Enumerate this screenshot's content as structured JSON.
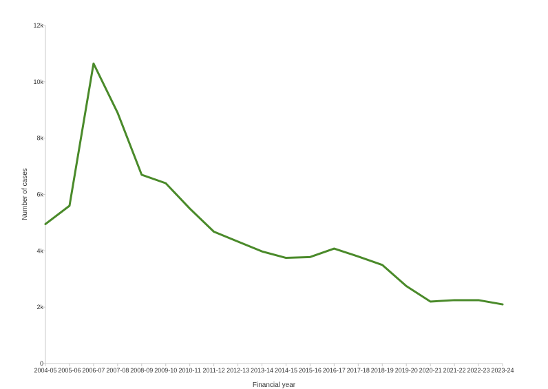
{
  "chart_data": {
    "type": "line",
    "title": "",
    "xlabel": "Financial year",
    "ylabel": "Number of cases",
    "categories": [
      "2004-05",
      "2005-06",
      "2006-07",
      "2007-08",
      "2008-09",
      "2009-10",
      "2010-11",
      "2011-12",
      "2012-13",
      "2013-14",
      "2014-15",
      "2015-16",
      "2016-17",
      "2017-18",
      "2018-19",
      "2019-20",
      "2020-21",
      "2021-22",
      "2022-23",
      "2023-24"
    ],
    "series": [
      {
        "values": [
          4950,
          5600,
          10650,
          8900,
          6700,
          6400,
          5500,
          4680,
          4330,
          3980,
          3750,
          3780,
          4080,
          3800,
          3500,
          2750,
          2200,
          2250,
          2250,
          2100
        ]
      }
    ],
    "ylim": [
      0,
      12000
    ],
    "yticks": [
      0,
      2000,
      4000,
      6000,
      8000,
      10000,
      12000
    ],
    "ytick_labels": [
      "0",
      "2k",
      "4k",
      "6k",
      "8k",
      "10k",
      "12k"
    ],
    "grid": false,
    "colors": {
      "line": "#4a8a2a",
      "axis": "#c8c8c8",
      "text": "#333333"
    }
  }
}
